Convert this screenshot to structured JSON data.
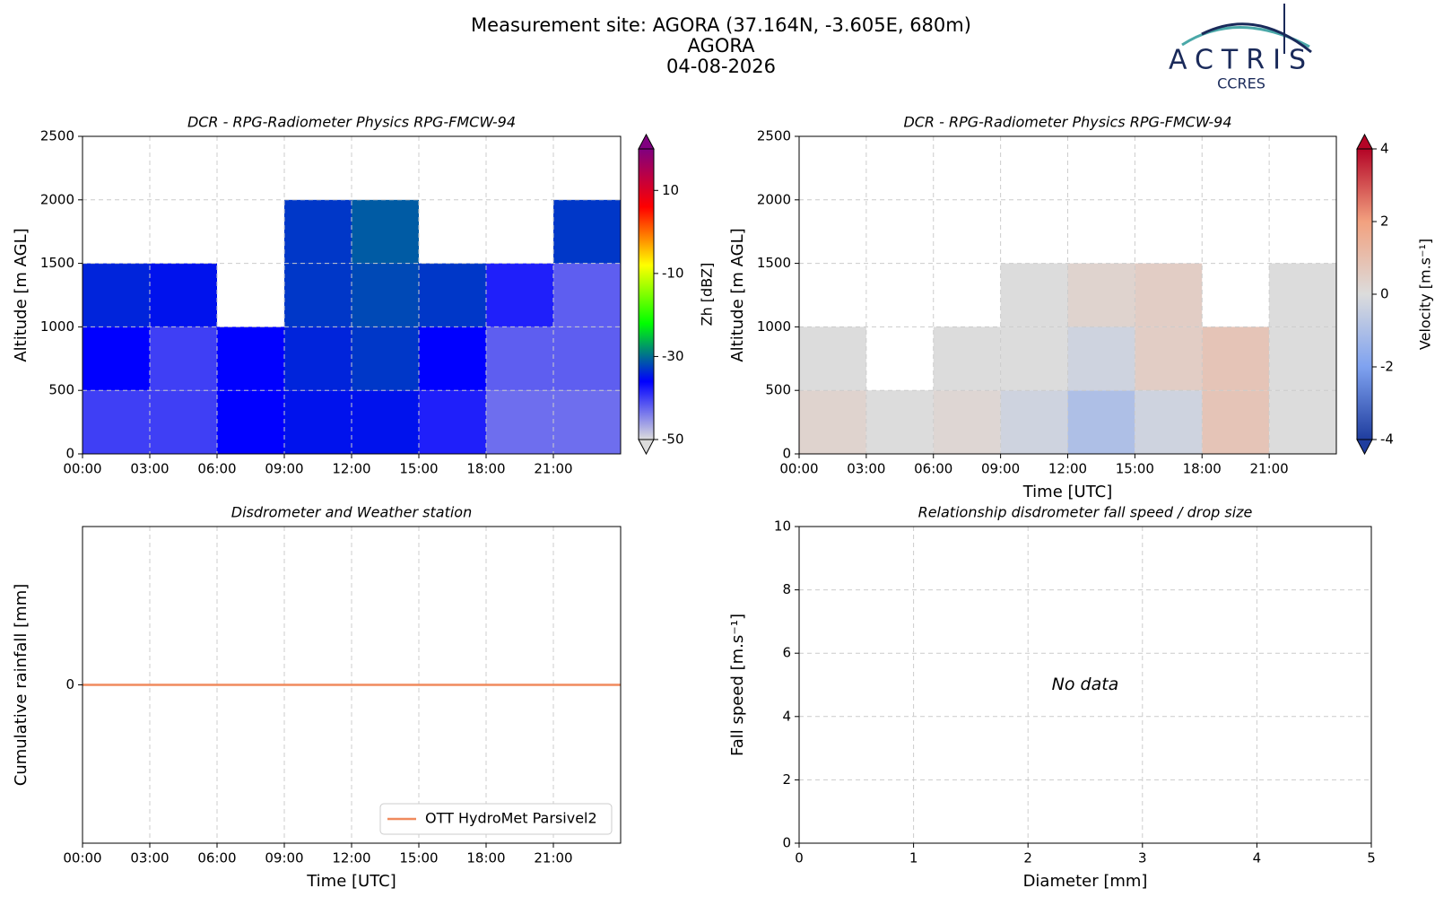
{
  "header": {
    "lines": [
      "Measurement site: AGORA (37.164N, -3.605E, 680m)",
      "AGORA",
      "04-08-2026"
    ],
    "logo": "ACTRIS",
    "logo_sub": "CCRES"
  },
  "chart_data": [
    {
      "type": "heatmap",
      "title": "DCR - RPG-Radiometer Physics RPG-FMCW-94",
      "ylabel": "Altitude [m AGL]",
      "x_edges": [
        0,
        3,
        6,
        9,
        12,
        15,
        18,
        21,
        24
      ],
      "y_edges": [
        0,
        500,
        1000,
        1500,
        2000,
        2500
      ],
      "z": [
        [
          -40,
          -40,
          -36,
          -35,
          -35,
          -38,
          -43,
          -43
        ],
        [
          -36,
          -40,
          -36,
          -34,
          -33,
          -36,
          -42,
          -42
        ],
        [
          -34,
          -35,
          null,
          -33,
          -32,
          -33,
          -38,
          -42
        ],
        [
          null,
          null,
          null,
          -33,
          -31,
          null,
          null,
          -33
        ],
        [
          null,
          null,
          null,
          null,
          null,
          null,
          null,
          null
        ]
      ],
      "xlim": [
        0,
        24
      ],
      "ylim": [
        0,
        2500
      ],
      "xticks": [
        {
          "value": 0,
          "label": "00:00"
        },
        {
          "value": 3,
          "label": "03:00"
        },
        {
          "value": 6,
          "label": "06:00"
        },
        {
          "value": 9,
          "label": "09:00"
        },
        {
          "value": 12,
          "label": "12:00"
        },
        {
          "value": 15,
          "label": "15:00"
        },
        {
          "value": 18,
          "label": "18:00"
        },
        {
          "value": 21,
          "label": "21:00"
        }
      ],
      "yticks": [
        0,
        500,
        1000,
        1500,
        2000,
        2500
      ],
      "grid": true,
      "colorbar_label": "Zh [dBZ]",
      "clim": [
        -50,
        20
      ],
      "cticks": [
        -50,
        -30,
        -10,
        10
      ],
      "colorscale": [
        "#dcdcdc",
        "#0000ff",
        "#00ff00",
        "#ffff00",
        "#ff0000",
        "#800080"
      ]
    },
    {
      "type": "heatmap",
      "title": "DCR - RPG-Radiometer Physics RPG-FMCW-94",
      "ylabel": "Altitude [m AGL]",
      "xlabel": "Time [UTC]",
      "x_edges": [
        0,
        3,
        6,
        9,
        12,
        15,
        18,
        21,
        24
      ],
      "y_edges": [
        0,
        500,
        1000,
        1500,
        2000,
        2500
      ],
      "z": [
        [
          0.3,
          0,
          0.2,
          -0.3,
          -1,
          -0.3,
          0.8,
          0
        ],
        [
          0,
          null,
          0,
          0,
          -0.3,
          0.5,
          0.8,
          0
        ],
        [
          null,
          null,
          null,
          0,
          0.3,
          0.5,
          null,
          0
        ],
        [
          null,
          null,
          null,
          null,
          null,
          null,
          null,
          null
        ],
        [
          null,
          null,
          null,
          null,
          null,
          null,
          null,
          null
        ]
      ],
      "xlim": [
        0,
        24
      ],
      "ylim": [
        0,
        2500
      ],
      "xticks": [
        {
          "value": 0,
          "label": "00:00"
        },
        {
          "value": 3,
          "label": "03:00"
        },
        {
          "value": 6,
          "label": "06:00"
        },
        {
          "value": 9,
          "label": "09:00"
        },
        {
          "value": 12,
          "label": "12:00"
        },
        {
          "value": 15,
          "label": "15:00"
        },
        {
          "value": 18,
          "label": "18:00"
        },
        {
          "value": 21,
          "label": "21:00"
        }
      ],
      "yticks": [
        0,
        500,
        1000,
        1500,
        2000,
        2500
      ],
      "grid": true,
      "colorbar_label": "Velocity [m.s⁻¹]",
      "clim": [
        -4,
        4
      ],
      "cticks": [
        -4,
        -2,
        0,
        2,
        4
      ],
      "colorscale": [
        "#1f3d9e",
        "#7fa2f0",
        "#dcdcdc",
        "#f2a17f",
        "#b40426"
      ]
    },
    {
      "type": "line",
      "title": "Disdrometer and Weather station",
      "ylabel": "Cumulative rainfall [mm]",
      "xlabel": "Time [UTC]",
      "x": [
        0,
        24
      ],
      "series": [
        {
          "name": "OTT HydroMet Parsivel2",
          "color": "#f08a5d",
          "values": [
            0,
            0
          ]
        }
      ],
      "xlim": [
        0,
        24
      ],
      "ylim": [
        -0.055,
        0.055
      ],
      "xticks": [
        {
          "value": 0,
          "label": "00:00"
        },
        {
          "value": 3,
          "label": "03:00"
        },
        {
          "value": 6,
          "label": "06:00"
        },
        {
          "value": 9,
          "label": "09:00"
        },
        {
          "value": 12,
          "label": "12:00"
        },
        {
          "value": 15,
          "label": "15:00"
        },
        {
          "value": 18,
          "label": "18:00"
        },
        {
          "value": 21,
          "label": "21:00"
        }
      ],
      "yticks": [
        0
      ],
      "grid": true,
      "legend": "lower-right"
    },
    {
      "type": "scatter",
      "title": "Relationship disdrometer fall speed / drop size",
      "ylabel": "Fall speed [m.s⁻¹]",
      "xlabel": "Diameter [mm]",
      "annotation": "No data",
      "xlim": [
        0,
        5
      ],
      "ylim": [
        0,
        10
      ],
      "xticks": [
        0,
        1,
        2,
        3,
        4,
        5
      ],
      "yticks": [
        0,
        2,
        4,
        6,
        8,
        10
      ],
      "grid": true
    }
  ]
}
